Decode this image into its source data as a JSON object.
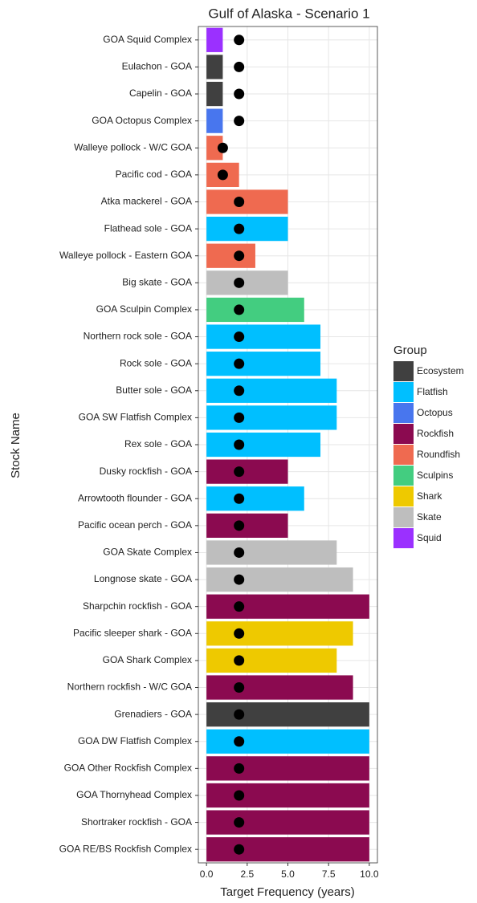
{
  "chart_data": {
    "type": "bar",
    "orientation": "horizontal",
    "title": "Gulf of Alaska - Scenario 1",
    "x_label": "Target Frequency (years)",
    "y_label": "Stock Name",
    "categories": [
      "GOA Squid Complex",
      "Eulachon - GOA",
      "Capelin - GOA",
      "GOA Octopus Complex",
      "Walleye pollock - W/C GOA",
      "Pacific cod - GOA",
      "Atka mackerel - GOA",
      "Flathead sole - GOA",
      "Walleye pollock - Eastern GOA",
      "Big skate - GOA",
      "GOA Sculpin Complex",
      "Northern rock sole - GOA",
      "Rock sole - GOA",
      "Butter sole - GOA",
      "GOA SW Flatfish Complex",
      "Rex sole - GOA",
      "Dusky rockfish - GOA",
      "Arrowtooth flounder - GOA",
      "Pacific ocean perch - GOA",
      "GOA Skate Complex",
      "Longnose skate - GOA",
      "Sharpchin rockfish - GOA",
      "Pacific sleeper shark - GOA",
      "GOA Shark Complex",
      "Northern rockfish - W/C GOA",
      "Grenadiers - GOA",
      "GOA DW Flatfish Complex",
      "GOA Other Rockfish Complex",
      "GOA Thornyhead Complex",
      "Shortraker rockfish - GOA",
      "GOA RE/BS Rockfish Complex"
    ],
    "values": [
      1,
      1,
      1,
      1,
      1,
      2,
      5,
      5,
      3,
      5,
      6,
      7,
      7,
      8,
      8,
      7,
      5,
      6,
      5,
      8,
      9,
      10,
      9,
      8,
      9,
      10,
      10,
      10,
      10,
      10,
      10
    ],
    "bar_groups": [
      "Squid",
      "Ecosystem",
      "Ecosystem",
      "Octopus",
      "Roundfish",
      "Roundfish",
      "Roundfish",
      "Flatfish",
      "Roundfish",
      "Skate",
      "Sculpins",
      "Flatfish",
      "Flatfish",
      "Flatfish",
      "Flatfish",
      "Flatfish",
      "Rockfish",
      "Flatfish",
      "Rockfish",
      "Skate",
      "Skate",
      "Rockfish",
      "Shark",
      "Shark",
      "Rockfish",
      "Ecosystem",
      "Flatfish",
      "Rockfish",
      "Rockfish",
      "Rockfish",
      "Rockfish"
    ],
    "dots": [
      2,
      2,
      2,
      2,
      1,
      1,
      2,
      2,
      2,
      2,
      2,
      2,
      2,
      2,
      2,
      2,
      2,
      2,
      2,
      2,
      2,
      2,
      2,
      2,
      2,
      2,
      2,
      2,
      2,
      2,
      2
    ],
    "dot_color": "#000000",
    "legend_title": "Group",
    "groups": [
      {
        "name": "Ecosystem",
        "color": "#404040"
      },
      {
        "name": "Flatfish",
        "color": "#00bfff"
      },
      {
        "name": "Octopus",
        "color": "#4876ee"
      },
      {
        "name": "Rockfish",
        "color": "#8b0a50"
      },
      {
        "name": "Roundfish",
        "color": "#ef6a50"
      },
      {
        "name": "Sculpins",
        "color": "#43cd80"
      },
      {
        "name": "Shark",
        "color": "#eec900"
      },
      {
        "name": "Skate",
        "color": "#bebebe"
      },
      {
        "name": "Squid",
        "color": "#9b30ff"
      }
    ],
    "xlim": [
      -0.5,
      10.5
    ],
    "xticks": [
      {
        "value": 0,
        "label": "0.0"
      },
      2.5,
      {
        "value": 5,
        "label": "5.0"
      },
      7.5,
      {
        "value": 10,
        "label": "10.0"
      }
    ],
    "grid": true,
    "legend_position": "right"
  }
}
